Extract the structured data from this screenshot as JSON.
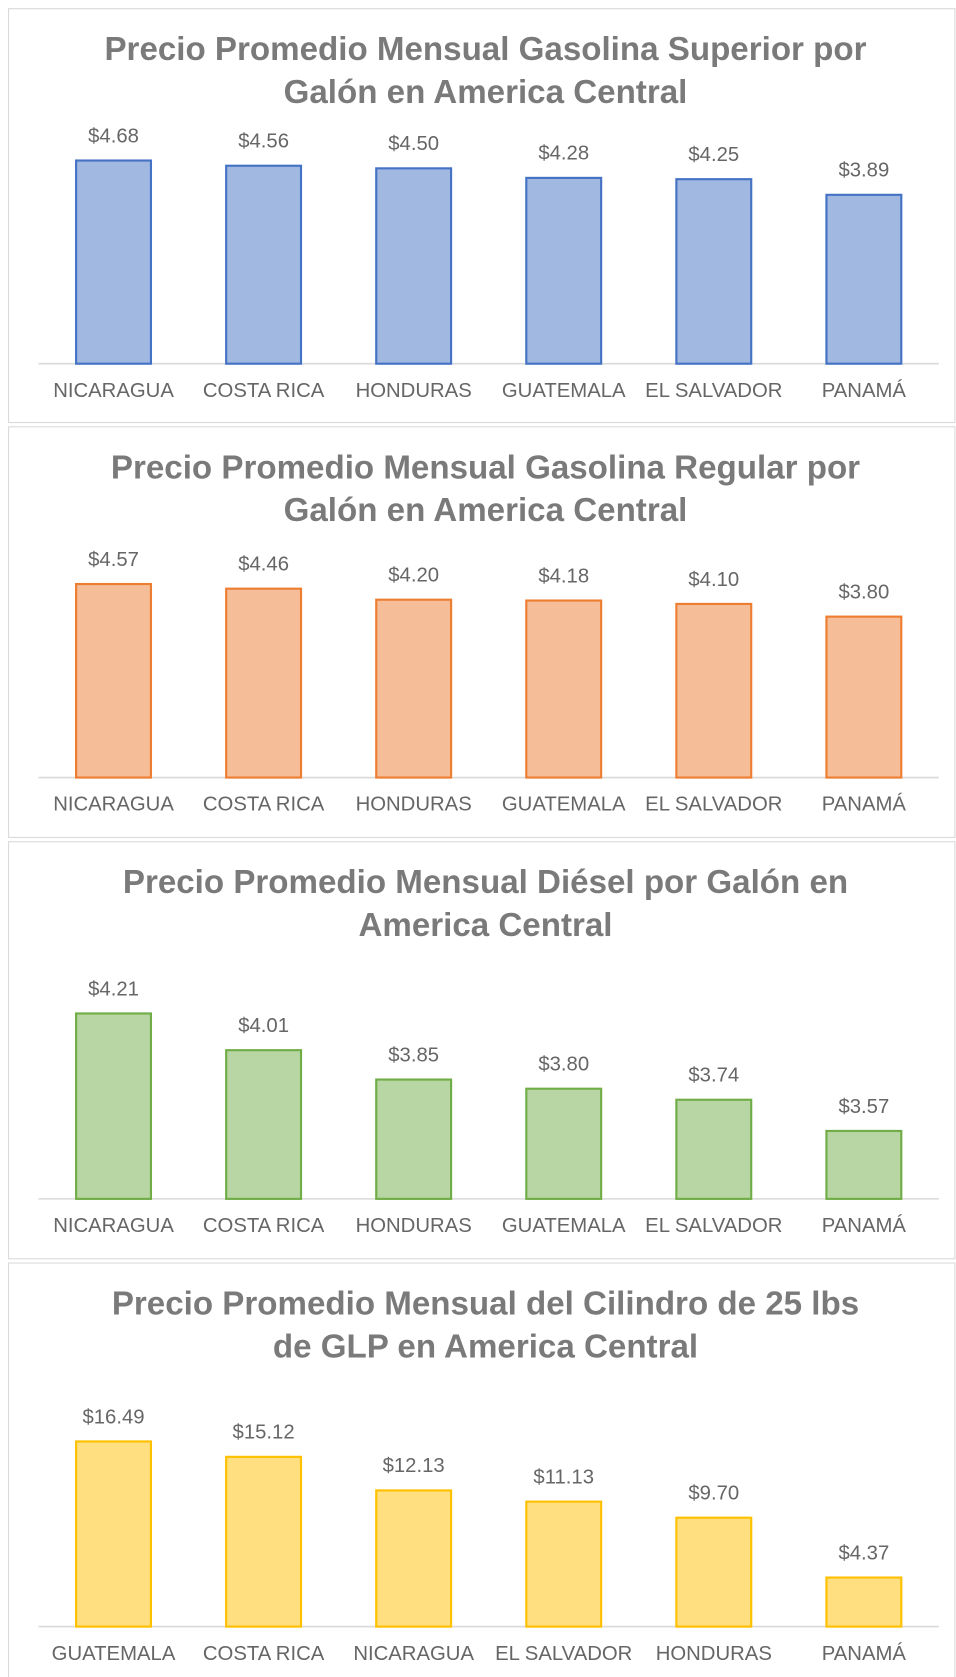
{
  "chart_data": [
    {
      "type": "bar",
      "title": [
        "Precio Promedio Mensual Gasolina Superior por",
        "Galón en America Central"
      ],
      "categories": [
        "NICARAGUA",
        "COSTA RICA",
        "HONDURAS",
        "GUATEMALA",
        "EL SALVADOR",
        "PANAMÁ"
      ],
      "values": [
        4.68,
        4.56,
        4.5,
        4.28,
        4.25,
        3.89
      ],
      "value_labels": [
        "$4.68",
        "$4.56",
        "$4.50",
        "$4.28",
        "$4.25",
        "$3.89"
      ],
      "color": "#4472c4",
      "ylim": [
        0,
        5
      ]
    },
    {
      "type": "bar",
      "title": [
        "Precio Promedio Mensual Gasolina Regular por",
        "Galón en America Central"
      ],
      "categories": [
        "NICARAGUA",
        "COSTA RICA",
        "HONDURAS",
        "GUATEMALA",
        "EL SALVADOR",
        "PANAMÁ"
      ],
      "values": [
        4.57,
        4.46,
        4.2,
        4.18,
        4.1,
        3.8
      ],
      "value_labels": [
        "$4.57",
        "$4.46",
        "$4.20",
        "$4.18",
        "$4.10",
        "$3.80"
      ],
      "color": "#ed7d31",
      "ylim": [
        0,
        5
      ]
    },
    {
      "type": "bar",
      "title": [
        "Precio Promedio Mensual Diésel por Galón en",
        "America Central"
      ],
      "categories": [
        "NICARAGUA",
        "COSTA RICA",
        "HONDURAS",
        "GUATEMALA",
        "EL SALVADOR",
        "PANAMÁ"
      ],
      "values": [
        4.21,
        4.01,
        3.85,
        3.8,
        3.74,
        3.57
      ],
      "value_labels": [
        "$4.21",
        "$4.01",
        "$3.85",
        "$3.80",
        "$3.74",
        "$3.57"
      ],
      "color": "#70ad47",
      "ylim": [
        3.2,
        4.4
      ]
    },
    {
      "type": "bar",
      "title": [
        "Precio Promedio Mensual del Cilindro de 25 lbs",
        "de GLP en America Central"
      ],
      "categories": [
        "GUATEMALA",
        "COSTA RICA",
        "NICARAGUA",
        "EL SALVADOR",
        "HONDURAS",
        "PANAMÁ"
      ],
      "values": [
        16.49,
        15.12,
        12.13,
        11.13,
        9.7,
        4.37
      ],
      "value_labels": [
        "$16.49",
        "$15.12",
        "$12.13",
        "$11.13",
        "$9.70",
        "$4.37"
      ],
      "color": "#ffc000",
      "ylim": [
        0,
        18
      ]
    }
  ]
}
